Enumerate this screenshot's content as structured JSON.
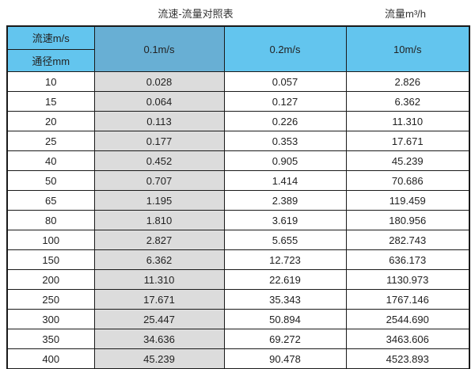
{
  "captions": {
    "title": "流速-流量对照表",
    "unit": "流量m³/h"
  },
  "chart_data": {
    "type": "table",
    "title": "流速-流量对照表",
    "unit_label": "流量m³/h",
    "corner": {
      "top": "流速m/s",
      "bottom": "通径mm"
    },
    "columns": [
      "0.1m/s",
      "0.2m/s",
      "10m/s"
    ],
    "rows": [
      {
        "dn": "10",
        "values": [
          "0.028",
          "0.057",
          "2.826"
        ]
      },
      {
        "dn": "15",
        "values": [
          "0.064",
          "0.127",
          "6.362"
        ]
      },
      {
        "dn": "20",
        "values": [
          "0.113",
          "0.226",
          "11.310"
        ]
      },
      {
        "dn": "25",
        "values": [
          "0.177",
          "0.353",
          "17.671"
        ]
      },
      {
        "dn": "40",
        "values": [
          "0.452",
          "0.905",
          "45.239"
        ]
      },
      {
        "dn": "50",
        "values": [
          "0.707",
          "1.414",
          "70.686"
        ]
      },
      {
        "dn": "65",
        "values": [
          "1.195",
          "2.389",
          "119.459"
        ]
      },
      {
        "dn": "80",
        "values": [
          "1.810",
          "3.619",
          "180.956"
        ]
      },
      {
        "dn": "100",
        "values": [
          "2.827",
          "5.655",
          "282.743"
        ]
      },
      {
        "dn": "150",
        "values": [
          "6.362",
          "12.723",
          "636.173"
        ]
      },
      {
        "dn": "200",
        "values": [
          "11.310",
          "22.619",
          "1130.973"
        ]
      },
      {
        "dn": "250",
        "values": [
          "17.671",
          "35.343",
          "1767.146"
        ]
      },
      {
        "dn": "300",
        "values": [
          "25.447",
          "50.894",
          "2544.690"
        ]
      },
      {
        "dn": "350",
        "values": [
          "34.636",
          "69.272",
          "3463.606"
        ]
      },
      {
        "dn": "400",
        "values": [
          "45.239",
          "90.478",
          "4523.893"
        ]
      }
    ]
  },
  "colors": {
    "header_blue": "#63c5ee",
    "header_steel": "#68afd4",
    "shade_gray": "#dcdcdc",
    "border": "#1a1a1a"
  }
}
